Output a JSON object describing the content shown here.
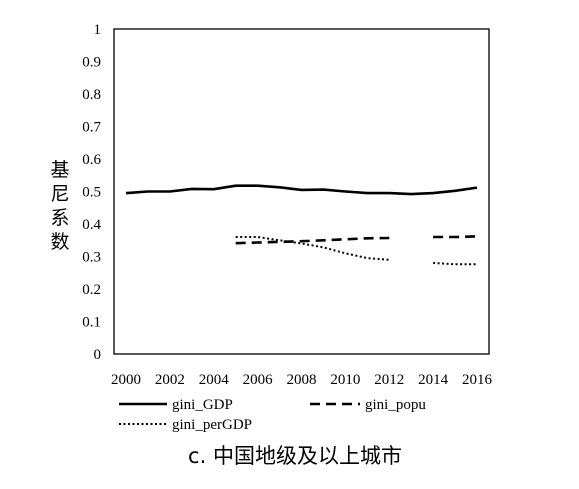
{
  "chart_data": {
    "type": "line",
    "title": "",
    "caption": "c. 中国地级及以上城市",
    "ylabel": "基尼系数",
    "xlabel": "",
    "xlim": [
      2000,
      2016
    ],
    "ylim": [
      0,
      1
    ],
    "x_ticks": [
      "2000",
      "2002",
      "2004",
      "2006",
      "2008",
      "2010",
      "2012",
      "2014",
      "2016"
    ],
    "y_ticks": [
      "0",
      "0.1",
      "0.2",
      "0.3",
      "0.4",
      "0.5",
      "0.6",
      "0.7",
      "0.8",
      "0.9",
      "1"
    ],
    "grid": false,
    "legend_position": "bottom",
    "series": [
      {
        "name": "gini_GDP",
        "style": "solid",
        "color": "#000000",
        "points": [
          [
            2000,
            0.495
          ],
          [
            2001,
            0.5
          ],
          [
            2002,
            0.5
          ],
          [
            2003,
            0.508
          ],
          [
            2004,
            0.507
          ],
          [
            2005,
            0.518
          ],
          [
            2006,
            0.518
          ],
          [
            2007,
            0.513
          ],
          [
            2008,
            0.505
          ],
          [
            2009,
            0.506
          ],
          [
            2010,
            0.5
          ],
          [
            2011,
            0.495
          ],
          [
            2012,
            0.495
          ],
          [
            2013,
            0.492
          ],
          [
            2014,
            0.495
          ],
          [
            2015,
            0.502
          ],
          [
            2016,
            0.512
          ]
        ]
      },
      {
        "name": "gini_popu",
        "style": "dashed",
        "color": "#000000",
        "segments": [
          [
            [
              2005,
              0.341
            ],
            [
              2006,
              0.343
            ],
            [
              2007,
              0.345
            ],
            [
              2008,
              0.347
            ],
            [
              2009,
              0.35
            ],
            [
              2010,
              0.353
            ],
            [
              2011,
              0.356
            ],
            [
              2012,
              0.357
            ]
          ],
          [
            [
              2014,
              0.36
            ],
            [
              2015,
              0.36
            ],
            [
              2016,
              0.362
            ]
          ]
        ]
      },
      {
        "name": "gini_perGDP",
        "style": "dotted",
        "color": "#000000",
        "segments": [
          [
            [
              2005,
              0.36
            ],
            [
              2006,
              0.36
            ],
            [
              2007,
              0.35
            ],
            [
              2008,
              0.34
            ],
            [
              2009,
              0.328
            ],
            [
              2010,
              0.31
            ],
            [
              2011,
              0.295
            ],
            [
              2012,
              0.29
            ]
          ],
          [
            [
              2014,
              0.28
            ],
            [
              2015,
              0.276
            ],
            [
              2016,
              0.276
            ]
          ]
        ]
      }
    ]
  }
}
